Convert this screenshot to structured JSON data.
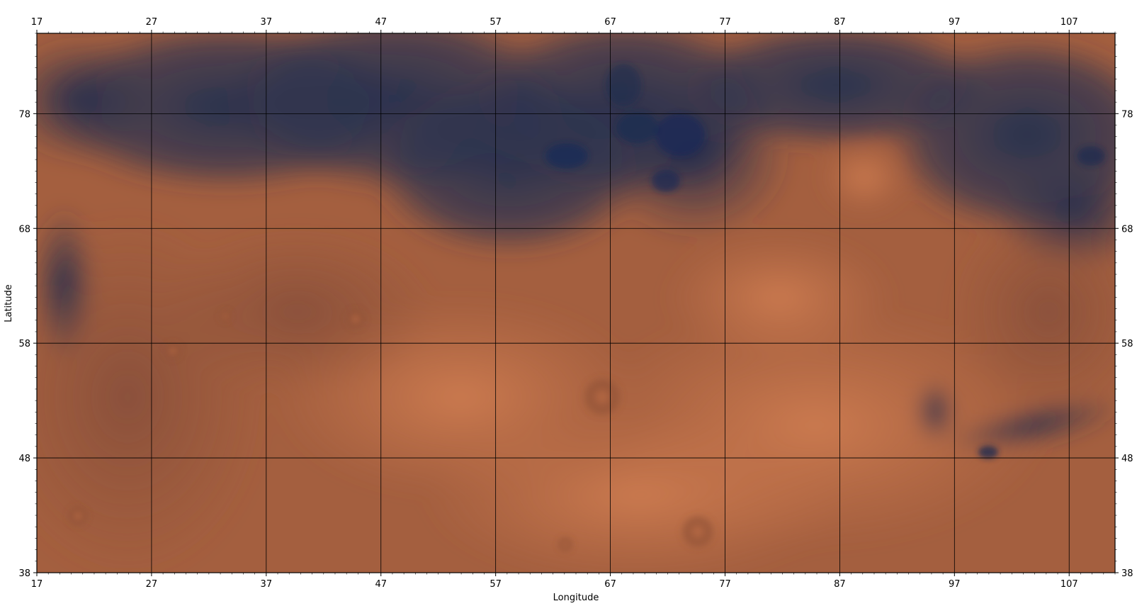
{
  "axes": {
    "xlabel": "Longitude",
    "ylabel": "Latitude",
    "xlim": [
      17,
      111
    ],
    "ylim": [
      38,
      85
    ],
    "x_ticks": [
      17,
      27,
      37,
      47,
      57,
      67,
      77,
      87,
      97,
      107
    ],
    "y_ticks": [
      38,
      48,
      58,
      68,
      78
    ],
    "ticks_on": [
      "bottom",
      "top",
      "left",
      "right"
    ],
    "grid": true
  },
  "map": {
    "type": "planetary surface mosaic",
    "colors": {
      "dark_albedo": "#2a3350",
      "mid_terrain": "#9c5a3c",
      "bright_plains": "#c4744a",
      "grid": "#000000",
      "frame": "#000000"
    }
  }
}
